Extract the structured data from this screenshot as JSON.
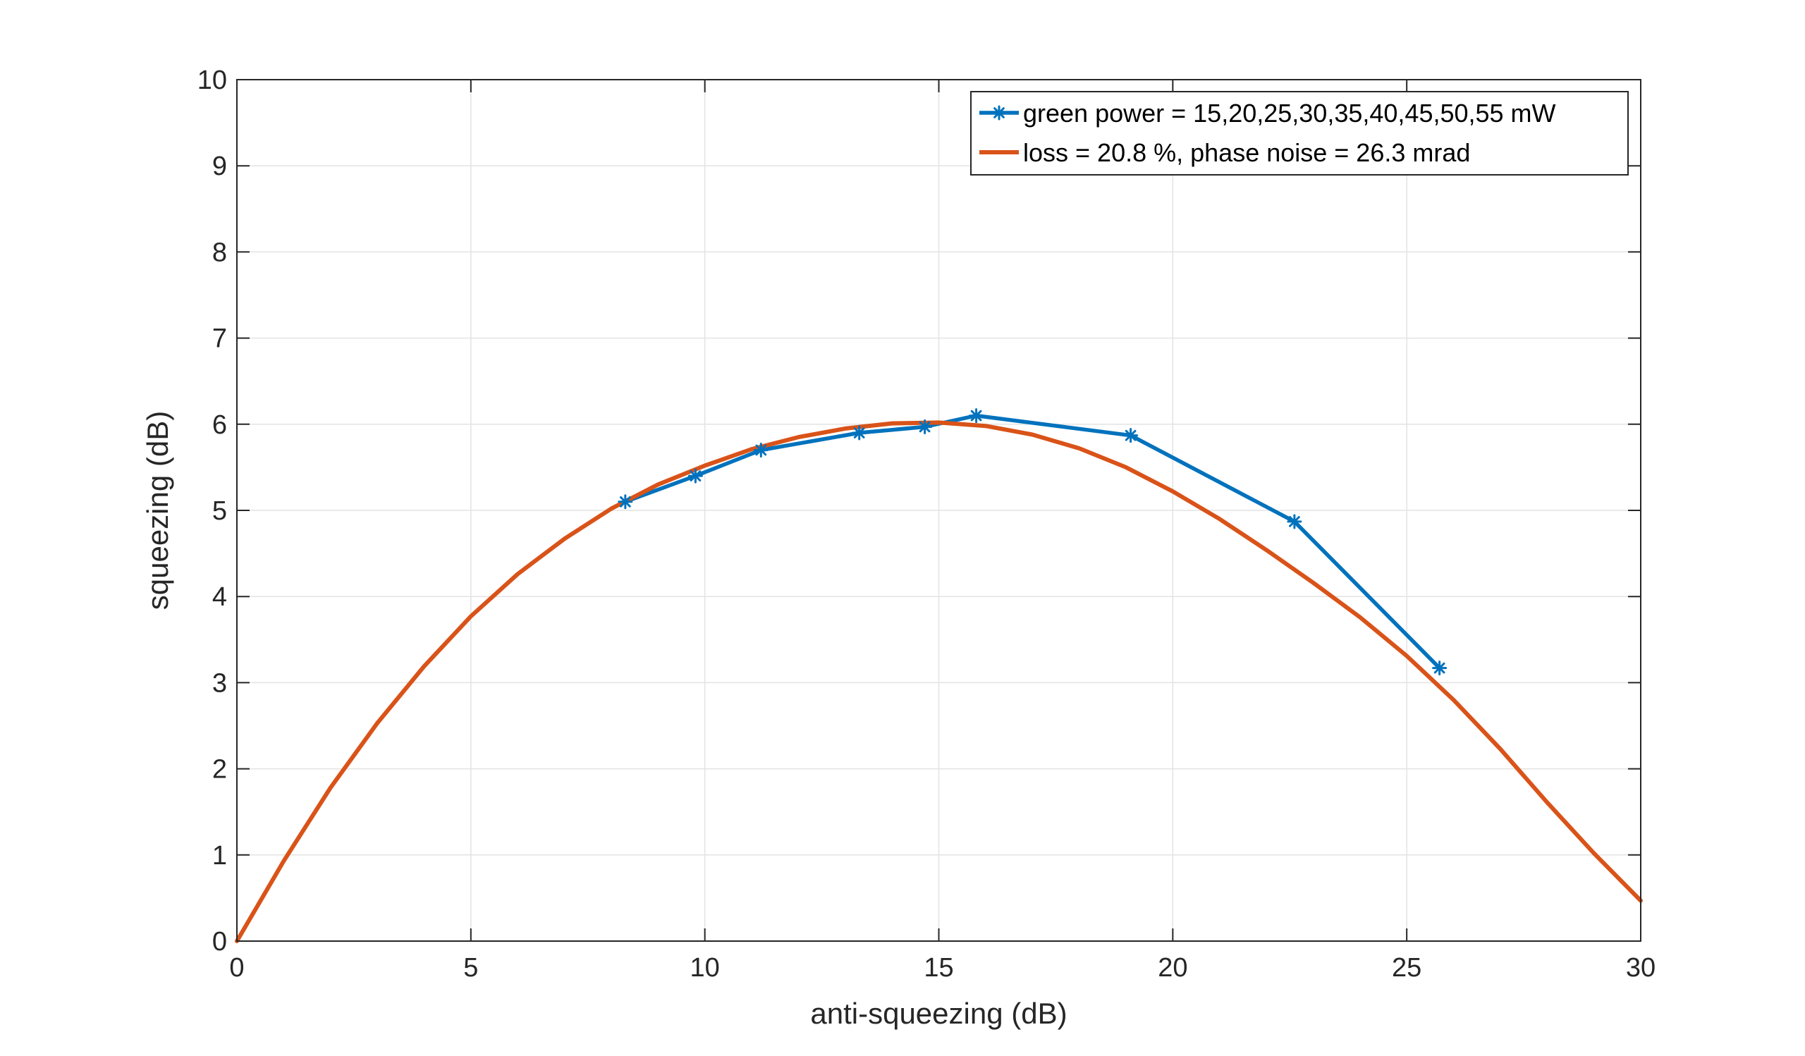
{
  "chart_data": {
    "type": "line",
    "title": "",
    "xlabel": "anti-squeezing (dB)",
    "ylabel": "squeezing (dB)",
    "xlim": [
      0,
      30
    ],
    "ylim": [
      0,
      10
    ],
    "xticks": [
      0,
      5,
      10,
      15,
      20,
      25,
      30
    ],
    "yticks": [
      0,
      1,
      2,
      3,
      4,
      5,
      6,
      7,
      8,
      9,
      10
    ],
    "grid": true,
    "legend_position": "top-right",
    "series": [
      {
        "name": "green power = 15,20,25,30,35,40,45,50,55 mW",
        "color": "#0072BD",
        "marker": "asterisk",
        "x": [
          8.3,
          9.8,
          11.2,
          13.3,
          14.7,
          15.8,
          19.1,
          22.6,
          25.7
        ],
        "y": [
          5.1,
          5.4,
          5.7,
          5.9,
          5.97,
          6.1,
          5.87,
          4.87,
          3.17
        ]
      },
      {
        "name": "loss = 20.8 %, phase noise = 26.3 mrad",
        "color": "#D95319",
        "marker": "none",
        "x": [
          0,
          1,
          2,
          3,
          4,
          5,
          6,
          7,
          8,
          9,
          10,
          11,
          12,
          13,
          14,
          15,
          16,
          17,
          18,
          19,
          20,
          21,
          22,
          23,
          24,
          25,
          26,
          27,
          28,
          29,
          30
        ],
        "y": [
          0.0,
          0.93,
          1.78,
          2.53,
          3.19,
          3.77,
          4.26,
          4.67,
          5.02,
          5.3,
          5.52,
          5.71,
          5.85,
          5.95,
          6.01,
          6.02,
          5.98,
          5.88,
          5.72,
          5.5,
          5.22,
          4.9,
          4.54,
          4.16,
          3.76,
          3.31,
          2.8,
          2.23,
          1.61,
          1.02,
          0.47
        ]
      }
    ]
  }
}
